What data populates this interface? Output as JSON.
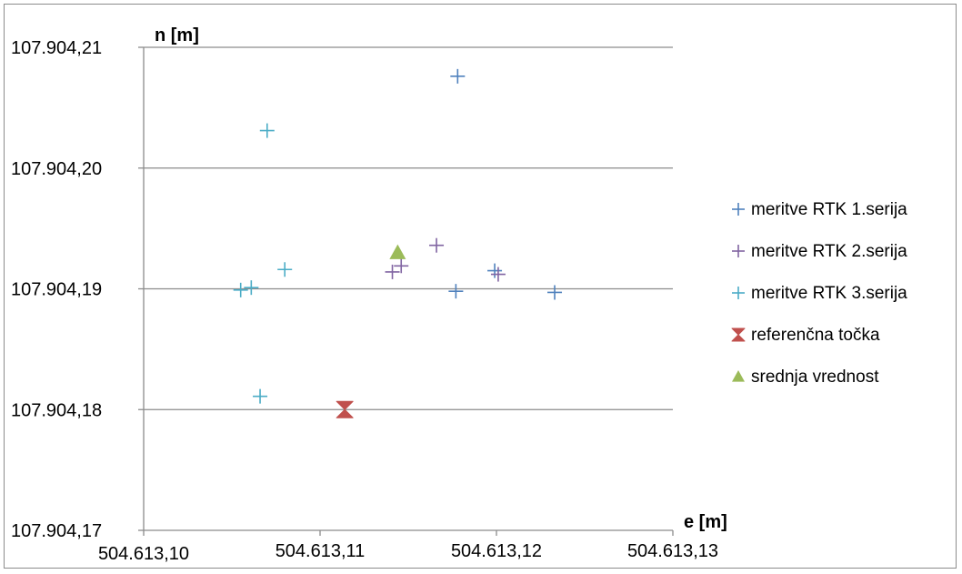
{
  "chart_data": {
    "type": "scatter",
    "title": "",
    "xlabel": "e [m]",
    "ylabel": "n [m]",
    "xlim": [
      504613.1,
      504613.13
    ],
    "ylim": [
      107904.17,
      107904.21
    ],
    "x_ticks": [
      {
        "value": 504613.1,
        "label": "504.613,10"
      },
      {
        "value": 504613.11,
        "label": "504.613,11"
      },
      {
        "value": 504613.12,
        "label": "504.613,12"
      },
      {
        "value": 504613.13,
        "label": "504.613,13"
      }
    ],
    "y_ticks": [
      {
        "value": 107904.21,
        "label": "107.904,21"
      },
      {
        "value": 107904.2,
        "label": "107.904,20"
      },
      {
        "value": 107904.19,
        "label": "107.904,19"
      },
      {
        "value": 107904.18,
        "label": "107.904,18"
      },
      {
        "value": 107904.17,
        "label": "107.904,17"
      }
    ],
    "grid": true,
    "legend_position": "right",
    "series": [
      {
        "name": "meritve RTK 1.serija",
        "marker": "plus",
        "color": "#4f81bd",
        "points": [
          {
            "x": 504613.1178,
            "y": 107904.2076
          },
          {
            "x": 504613.1177,
            "y": 107904.1898
          },
          {
            "x": 504613.1199,
            "y": 107904.1915
          },
          {
            "x": 504613.1233,
            "y": 107904.1897
          }
        ]
      },
      {
        "name": "meritve RTK 2.serija",
        "marker": "plus",
        "color": "#8064a2",
        "points": [
          {
            "x": 504613.1141,
            "y": 107904.1914
          },
          {
            "x": 504613.1146,
            "y": 107904.1919
          },
          {
            "x": 504613.1166,
            "y": 107904.1936
          },
          {
            "x": 504613.1201,
            "y": 107904.1912
          }
        ]
      },
      {
        "name": "meritve RTK 3.serija",
        "marker": "plus",
        "color": "#4bacc6",
        "points": [
          {
            "x": 504613.107,
            "y": 107904.2031
          },
          {
            "x": 504613.108,
            "y": 107904.1916
          },
          {
            "x": 504613.1055,
            "y": 107904.1899
          },
          {
            "x": 504613.1061,
            "y": 107904.1901
          },
          {
            "x": 504613.1066,
            "y": 107904.1811
          }
        ]
      },
      {
        "name": "referenčna točka",
        "marker": "hourglass",
        "color": "#c0504d",
        "points": [
          {
            "x": 504613.1114,
            "y": 107904.18
          }
        ]
      },
      {
        "name": "srednja vrednost",
        "marker": "triangle",
        "color": "#9bbb59",
        "points": [
          {
            "x": 504613.1144,
            "y": 107904.193
          }
        ]
      }
    ]
  }
}
